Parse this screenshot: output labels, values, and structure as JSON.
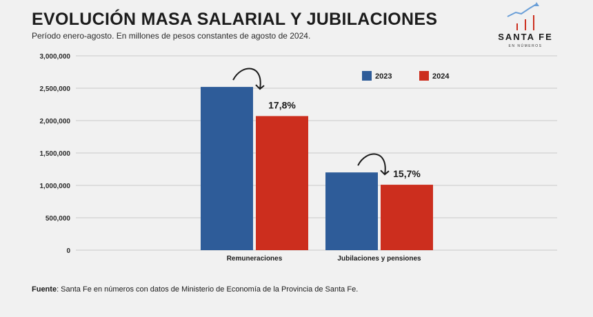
{
  "header": {
    "title": "EVOLUCIÓN MASA SALARIAL Y JUBILACIONES",
    "subtitle": "Período enero-agosto. En millones de pesos constantes de agosto de 2024."
  },
  "logo": {
    "name": "SANTA FE",
    "sub": "EN NÚMEROS"
  },
  "source": {
    "label": "Fuente",
    "text": ": Santa Fe en números con datos de Ministerio de Economía de la Provincia de Santa Fe."
  },
  "colors": {
    "series_2023": "#2e5c99",
    "series_2024": "#cc2e1e",
    "grid": "#c9c9c9",
    "arrow": "#1a1a1a"
  },
  "chart_data": {
    "type": "bar",
    "title": "EVOLUCIÓN MASA SALARIAL Y JUBILACIONES",
    "categories": [
      "Remuneraciones",
      "Jubilaciones y pensiones"
    ],
    "series": [
      {
        "name": "2023",
        "values": [
          2520000,
          1200000
        ]
      },
      {
        "name": "2024",
        "values": [
          2070000,
          1010000
        ]
      }
    ],
    "ylim": [
      0,
      3000000
    ],
    "yticks": [
      "0",
      "500,000",
      "1,000,000",
      "1,500,000",
      "2,000,000",
      "2,500,000",
      "3,000,000"
    ],
    "ytick_values": [
      0,
      500000,
      1000000,
      1500000,
      2000000,
      2500000,
      3000000
    ],
    "annotations": [
      "17,8%",
      "15,7%"
    ],
    "grid": true,
    "legend": "top-right"
  }
}
